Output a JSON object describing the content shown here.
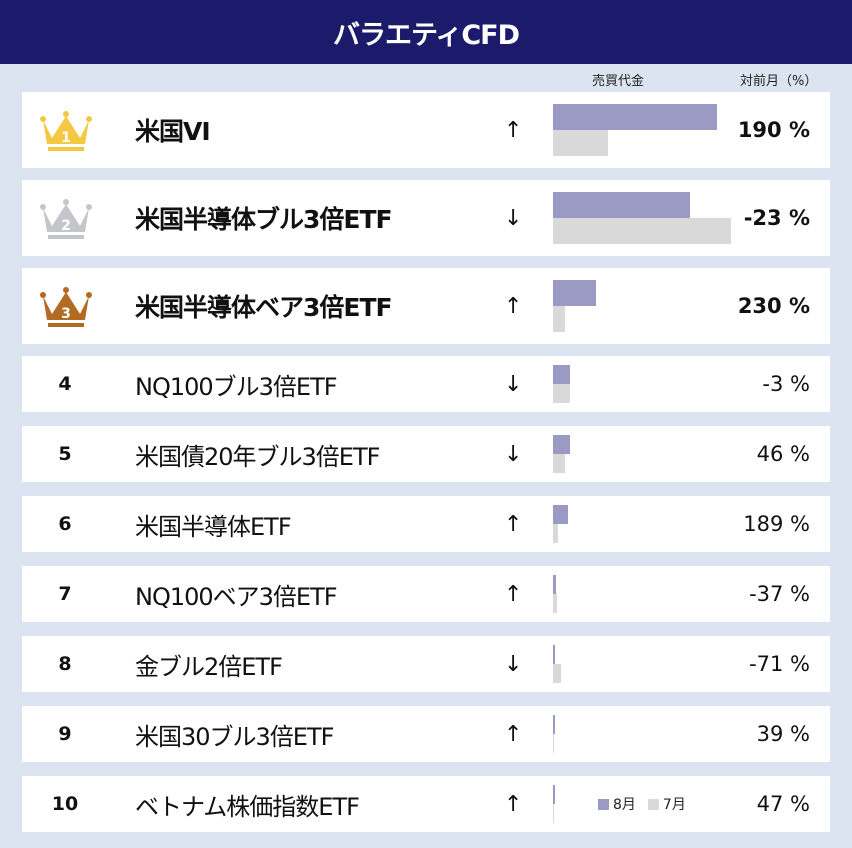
{
  "title": "バラエティCFD",
  "columns": {
    "volume": "売買代金",
    "change": "対前月（%）"
  },
  "legend": {
    "aug": "8月",
    "jul": "7月"
  },
  "colors": {
    "header": "#1b1a6b",
    "aug": "#9b9ac4",
    "jul": "#d9d9d9",
    "gold": "#f5c842",
    "silver": "#c4c6cc",
    "bronze": "#b36a22"
  },
  "rows": [
    {
      "rank": "1",
      "name": "米国VI",
      "arrow": "↑",
      "aug": 92,
      "jul": 31,
      "pct": "190 %"
    },
    {
      "rank": "2",
      "name": "米国半導体ブル3倍ETF",
      "arrow": "↓",
      "aug": 77,
      "jul": 100,
      "pct": "-23 %"
    },
    {
      "rank": "3",
      "name": "米国半導体ベア3倍ETF",
      "arrow": "↑",
      "aug": 24,
      "jul": 7,
      "pct": "230 %"
    },
    {
      "rank": "4",
      "name": "NQ100ブル3倍ETF",
      "arrow": "↓",
      "aug": 9.5,
      "jul": 9.8,
      "pct": "-3 %"
    },
    {
      "rank": "5",
      "name": "米国債20年ブル3倍ETF",
      "arrow": "↓",
      "aug": 9.5,
      "jul": 6.5,
      "pct": "46 %"
    },
    {
      "rank": "6",
      "name": "米国半導体ETF",
      "arrow": "↑",
      "aug": 8.3,
      "jul": 2.9,
      "pct": "189 %"
    },
    {
      "rank": "7",
      "name": "NQ100ベア3倍ETF",
      "arrow": "↑",
      "aug": 1.6,
      "jul": 2.5,
      "pct": "-37 %"
    },
    {
      "rank": "8",
      "name": "金ブル2倍ETF",
      "arrow": "↓",
      "aug": 1.2,
      "jul": 4.3,
      "pct": "-71 %"
    },
    {
      "rank": "9",
      "name": "米国30ブル3倍ETF",
      "arrow": "↑",
      "aug": 0.8,
      "jul": 0.6,
      "pct": "39 %"
    },
    {
      "rank": "10",
      "name": "ベトナム株価指数ETF",
      "arrow": "↑",
      "aug": 0.8,
      "jul": 0.6,
      "pct": "47 %"
    }
  ]
}
